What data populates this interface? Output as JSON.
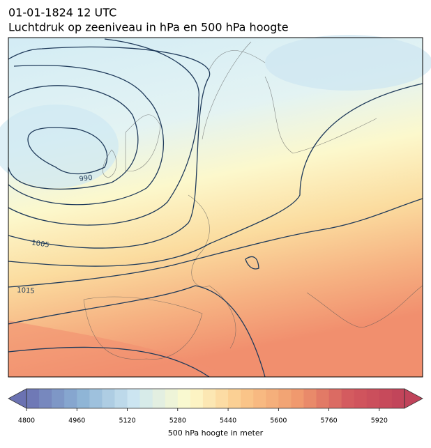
{
  "header": {
    "date": "01-01-1824 12 UTC",
    "title": "Luchtdruk op zeeniveau in hPa en 500 hPa hoogte"
  },
  "map": {
    "contour_labels": [
      990,
      1005,
      1015
    ]
  },
  "colorbar": {
    "label": "500 hPa hoogte in meter",
    "lim": [
      4800,
      6000
    ],
    "step": 40,
    "ticks": [
      4800,
      4960,
      5120,
      5280,
      5440,
      5600,
      5760,
      5920
    ],
    "colors": [
      "#6b72b2",
      "#8cb2d5",
      "#cde6f1",
      "#fdfbcd",
      "#fbc88a",
      "#f09a6e",
      "#d3585e",
      "#c0435a"
    ]
  }
}
